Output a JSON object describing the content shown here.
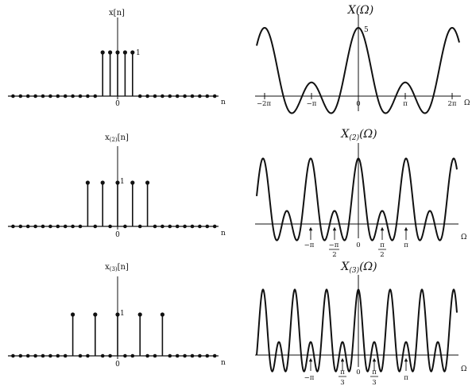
{
  "chart_data": [
    {
      "type": "stem",
      "title": "x[n]",
      "n": [
        -4,
        -3,
        -2,
        -1,
        0,
        1,
        2,
        3,
        4
      ],
      "x": [
        0,
        0,
        1,
        1,
        1,
        1,
        1,
        0,
        0
      ],
      "zero_label": "0",
      "axis_label": "n",
      "value_label": "1"
    },
    {
      "type": "line",
      "title": "X(Ω)",
      "expression": "sin(5Ω/2)/sin(Ω/2)",
      "peak_value": 5,
      "peak_label": "5",
      "xlim": [
        -6.9,
        6.9
      ],
      "ticks": [
        "−2π",
        "−π",
        "0",
        "π",
        "2π"
      ],
      "axis_label": "Ω"
    },
    {
      "type": "stem",
      "title": "x(2)[n]",
      "n": [
        -8,
        -6,
        -4,
        -2,
        0,
        2,
        4,
        6,
        8
      ],
      "x": [
        0,
        0,
        1,
        1,
        1,
        1,
        1,
        0,
        0
      ],
      "zero_label": "0",
      "axis_label": "n",
      "value_label": "1"
    },
    {
      "type": "line",
      "title": "X(2)(Ω)",
      "expression": "sin(5Ω)/sin(Ω)",
      "xlim": [
        -4.5,
        4.5
      ],
      "ticks": [
        "−π",
        "−π/2",
        "0",
        "π/2",
        "π"
      ],
      "axis_label": "Ω"
    },
    {
      "type": "stem",
      "title": "x(3)[n]",
      "n": [
        -9,
        -6,
        -3,
        0,
        3,
        6,
        9
      ],
      "x": [
        0,
        1,
        1,
        1,
        1,
        1,
        0
      ],
      "zero_label": "0",
      "axis_label": "n",
      "value_label": "1"
    },
    {
      "type": "line",
      "title": "X(3)(Ω)",
      "expression": "sin(15Ω/2)/sin(3Ω/2)",
      "xlim": [
        -4.5,
        4.5
      ],
      "ticks": [
        "−π",
        "−π/3",
        "0",
        "π/3",
        "π"
      ],
      "axis_label": "Ω"
    }
  ]
}
